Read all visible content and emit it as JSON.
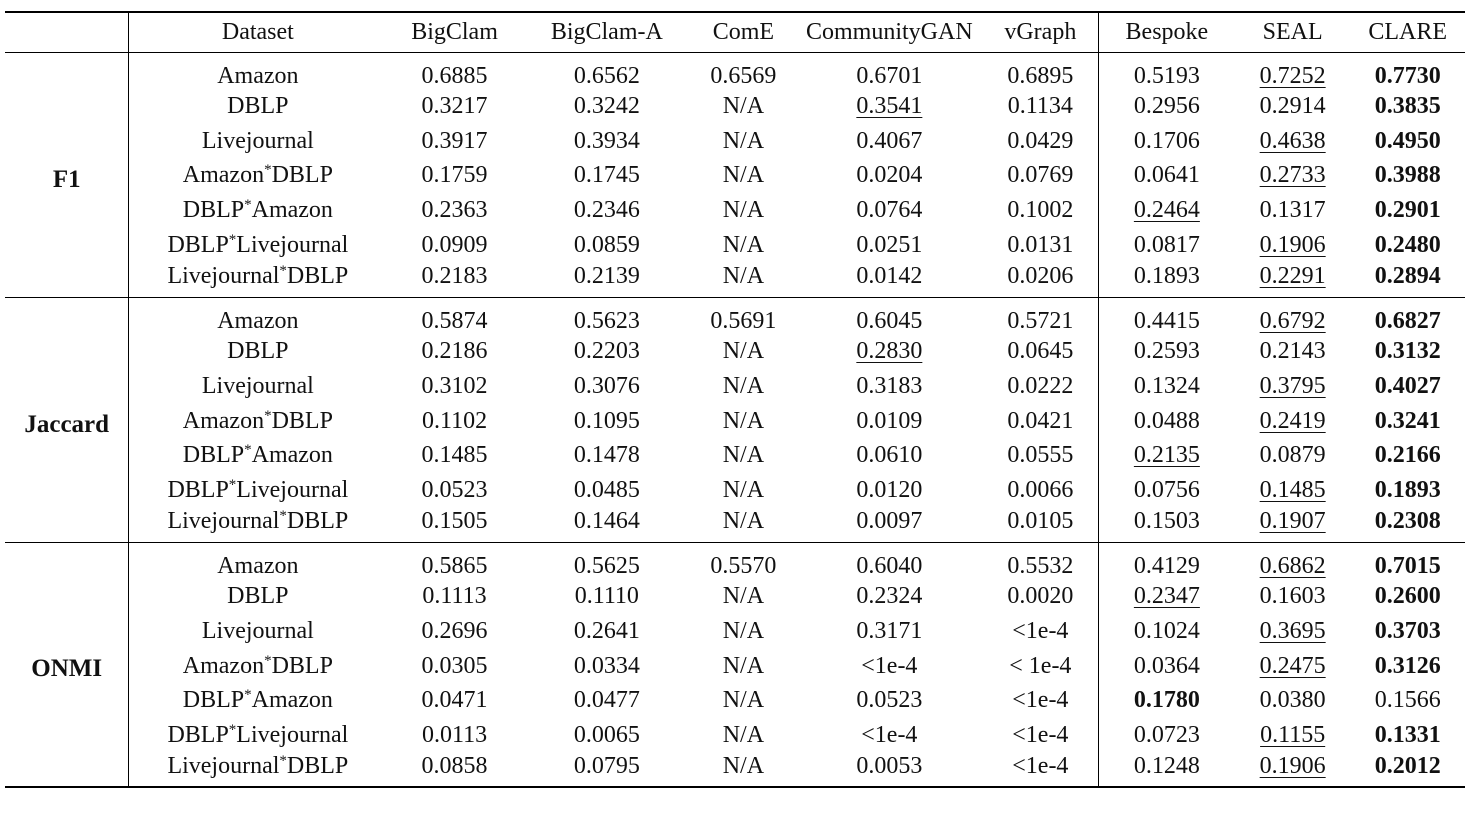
{
  "columns": [
    "Dataset",
    "BigClam",
    "BigClam-A",
    "ComE",
    "CommunityGAN",
    "vGraph",
    "Bespoke",
    "SEAL",
    "CLARE"
  ],
  "sections": [
    {
      "metric": "F1",
      "rows": [
        {
          "dataset": [
            "Amazon"
          ],
          "values": [
            "0.6885",
            "0.6562",
            "0.6569",
            "0.6701",
            "0.6895",
            "0.5193",
            "0.7252",
            "0.7730"
          ],
          "second": 6,
          "best": 7
        },
        {
          "dataset": [
            "DBLP"
          ],
          "values": [
            "0.3217",
            "0.3242",
            "N/A",
            "0.3541",
            "0.1134",
            "0.2956",
            "0.2914",
            "0.3835"
          ],
          "second": 3,
          "best": 7
        },
        {
          "dataset": [
            "Livejournal"
          ],
          "values": [
            "0.3917",
            "0.3934",
            "N/A",
            "0.4067",
            "0.0429",
            "0.1706",
            "0.4638",
            "0.4950"
          ],
          "second": 6,
          "best": 7
        },
        {
          "dataset": [
            "Amazon",
            "DBLP"
          ],
          "values": [
            "0.1759",
            "0.1745",
            "N/A",
            "0.0204",
            "0.0769",
            "0.0641",
            "0.2733",
            "0.3988"
          ],
          "second": 6,
          "best": 7
        },
        {
          "dataset": [
            "DBLP",
            "Amazon"
          ],
          "values": [
            "0.2363",
            "0.2346",
            "N/A",
            "0.0764",
            "0.1002",
            "0.2464",
            "0.1317",
            "0.2901"
          ],
          "second": 5,
          "best": 7
        },
        {
          "dataset": [
            "DBLP",
            "Livejournal"
          ],
          "values": [
            "0.0909",
            "0.0859",
            "N/A",
            "0.0251",
            "0.0131",
            "0.0817",
            "0.1906",
            "0.2480"
          ],
          "second": 6,
          "best": 7
        },
        {
          "dataset": [
            "Livejournal",
            "DBLP"
          ],
          "values": [
            "0.2183",
            "0.2139",
            "N/A",
            "0.0142",
            "0.0206",
            "0.1893",
            "0.2291",
            "0.2894"
          ],
          "second": 6,
          "best": 7
        }
      ]
    },
    {
      "metric": "Jaccard",
      "rows": [
        {
          "dataset": [
            "Amazon"
          ],
          "values": [
            "0.5874",
            "0.5623",
            "0.5691",
            "0.6045",
            "0.5721",
            "0.4415",
            "0.6792",
            "0.6827"
          ],
          "second": 6,
          "best": 7
        },
        {
          "dataset": [
            "DBLP"
          ],
          "values": [
            "0.2186",
            "0.2203",
            "N/A",
            "0.2830",
            "0.0645",
            "0.2593",
            "0.2143",
            "0.3132"
          ],
          "second": 3,
          "best": 7
        },
        {
          "dataset": [
            "Livejournal"
          ],
          "values": [
            "0.3102",
            "0.3076",
            "N/A",
            "0.3183",
            "0.0222",
            "0.1324",
            "0.3795",
            "0.4027"
          ],
          "second": 6,
          "best": 7
        },
        {
          "dataset": [
            "Amazon",
            "DBLP"
          ],
          "values": [
            "0.1102",
            "0.1095",
            "N/A",
            "0.0109",
            "0.0421",
            "0.0488",
            "0.2419",
            "0.3241"
          ],
          "second": 6,
          "best": 7
        },
        {
          "dataset": [
            "DBLP",
            "Amazon"
          ],
          "values": [
            "0.1485",
            "0.1478",
            "N/A",
            "0.0610",
            "0.0555",
            "0.2135",
            "0.0879",
            "0.2166"
          ],
          "second": 5,
          "best": 7
        },
        {
          "dataset": [
            "DBLP",
            "Livejournal"
          ],
          "values": [
            "0.0523",
            "0.0485",
            "N/A",
            "0.0120",
            "0.0066",
            "0.0756",
            "0.1485",
            "0.1893"
          ],
          "second": 6,
          "best": 7
        },
        {
          "dataset": [
            "Livejournal",
            "DBLP"
          ],
          "values": [
            "0.1505",
            "0.1464",
            "N/A",
            "0.0097",
            "0.0105",
            "0.1503",
            "0.1907",
            "0.2308"
          ],
          "second": 6,
          "best": 7
        }
      ]
    },
    {
      "metric": "ONMI",
      "rows": [
        {
          "dataset": [
            "Amazon"
          ],
          "values": [
            "0.5865",
            "0.5625",
            "0.5570",
            "0.6040",
            "0.5532",
            "0.4129",
            "0.6862",
            "0.7015"
          ],
          "second": 6,
          "best": 7
        },
        {
          "dataset": [
            "DBLP"
          ],
          "values": [
            "0.1113",
            "0.1110",
            "N/A",
            "0.2324",
            "0.0020",
            "0.2347",
            "0.1603",
            "0.2600"
          ],
          "second": 5,
          "best": 7
        },
        {
          "dataset": [
            "Livejournal"
          ],
          "values": [
            "0.2696",
            "0.2641",
            "N/A",
            "0.3171",
            "<1e-4",
            "0.1024",
            "0.3695",
            "0.3703"
          ],
          "second": 6,
          "best": 7
        },
        {
          "dataset": [
            "Amazon",
            "DBLP"
          ],
          "values": [
            "0.0305",
            "0.0334",
            "N/A",
            "<1e-4",
            "< 1e-4",
            "0.0364",
            "0.2475",
            "0.3126"
          ],
          "second": 6,
          "best": 7
        },
        {
          "dataset": [
            "DBLP",
            "Amazon"
          ],
          "values": [
            "0.0471",
            "0.0477",
            "N/A",
            "0.0523",
            "<1e-4",
            "0.1780",
            "0.0380",
            "0.1566"
          ],
          "second": -1,
          "best": 5
        },
        {
          "dataset": [
            "DBLP",
            "Livejournal"
          ],
          "values": [
            "0.0113",
            "0.0065",
            "N/A",
            "<1e-4",
            "<1e-4",
            "0.0723",
            "0.1155",
            "0.1331"
          ],
          "second": 6,
          "best": 7
        },
        {
          "dataset": [
            "Livejournal",
            "DBLP"
          ],
          "values": [
            "0.0858",
            "0.0795",
            "N/A",
            "0.0053",
            "<1e-4",
            "0.1248",
            "0.1906",
            "0.2012"
          ],
          "second": 6,
          "best": 7
        }
      ]
    }
  ],
  "joiner": "*"
}
